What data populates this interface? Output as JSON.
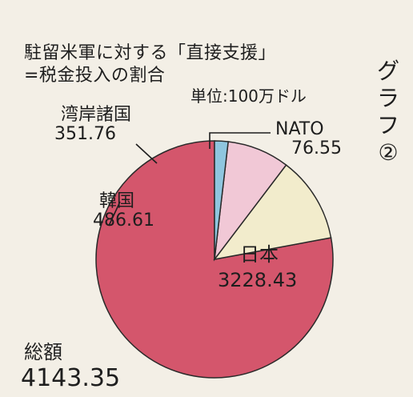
{
  "title": [
    "駐留米軍に対する「直接支援」",
    "=税金投入の割合"
  ],
  "unit": "単位:100万ドル",
  "graph_label": "グラフ②",
  "chart_data": {
    "type": "pie",
    "unit": "100万ドル",
    "total_label": "総額",
    "total": 4143.35,
    "total_text": "4143.35",
    "slices": [
      {
        "name": "日本",
        "value": 3228.43,
        "value_text": "3228.43",
        "color": "#d4566c"
      },
      {
        "name": "韓国",
        "value": 486.61,
        "value_text": "486.61",
        "color": "#f2eccc"
      },
      {
        "name": "湾岸諸国",
        "value": 351.76,
        "value_text": "351.76",
        "color": "#f1c8d6"
      },
      {
        "name": "NATO",
        "value": 76.55,
        "value_text": "76.55",
        "color": "#8fc6df"
      }
    ]
  }
}
